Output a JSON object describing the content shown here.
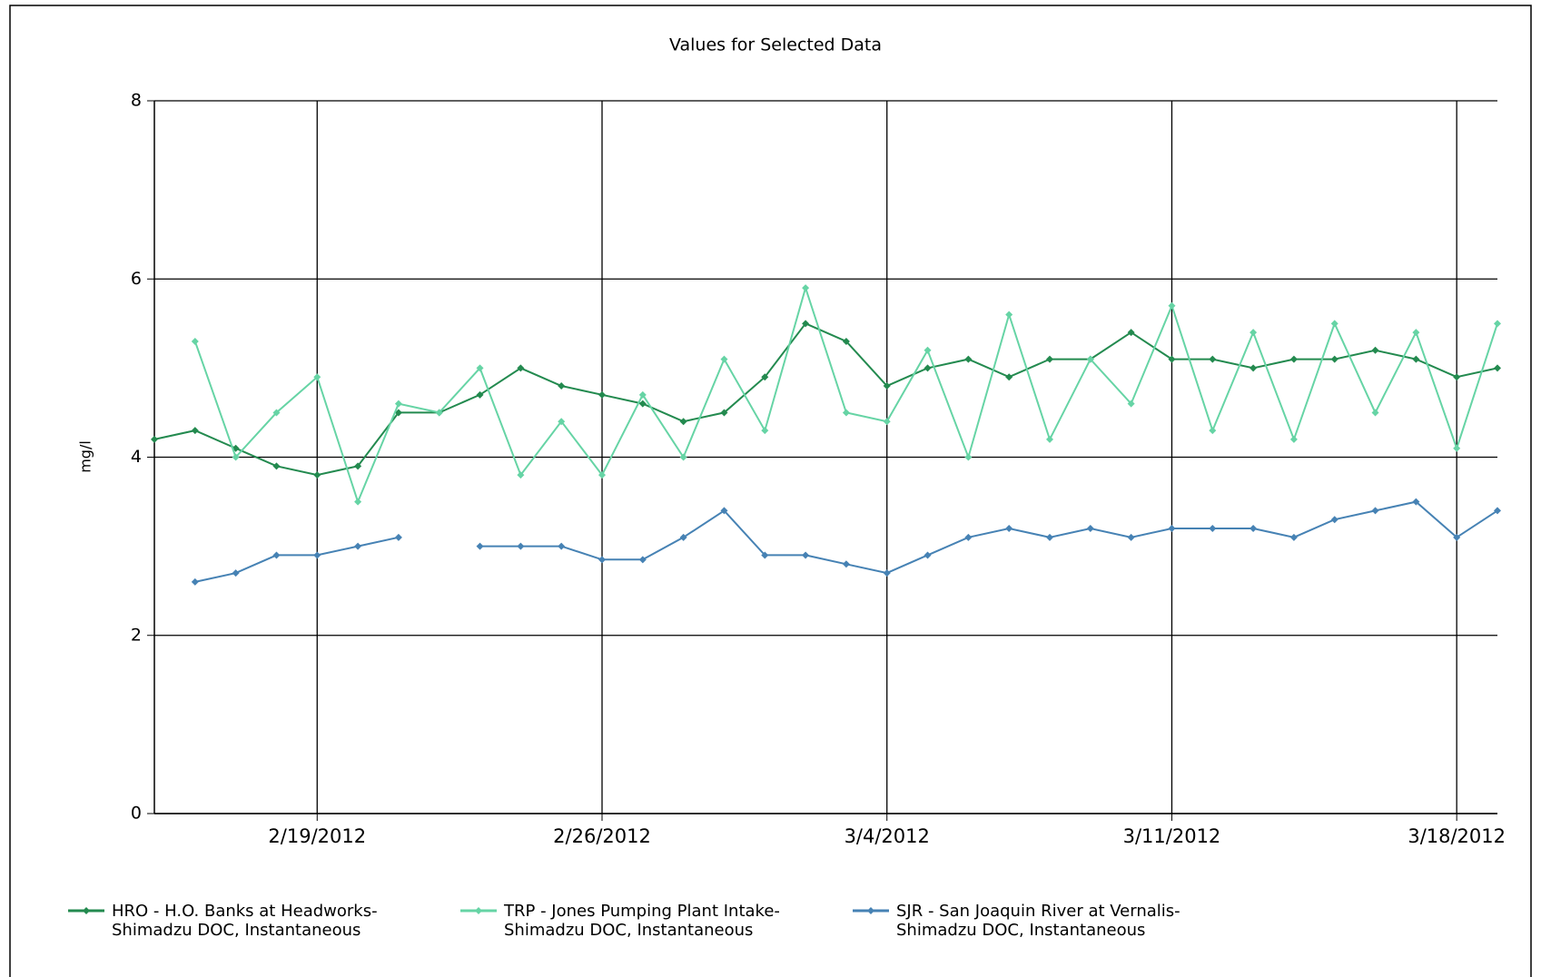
{
  "chart_data": {
    "type": "line",
    "title": "Values for Selected Data",
    "y_label": "mg/l",
    "x": [
      "2/15/2012",
      "2/16/2012",
      "2/17/2012",
      "2/18/2012",
      "2/19/2012",
      "2/20/2012",
      "2/21/2012",
      "2/22/2012",
      "2/23/2012",
      "2/24/2012",
      "2/25/2012",
      "2/26/2012",
      "2/27/2012",
      "2/28/2012",
      "2/29/2012",
      "3/1/2012",
      "3/2/2012",
      "3/3/2012",
      "3/4/2012",
      "3/5/2012",
      "3/6/2012",
      "3/7/2012",
      "3/8/2012",
      "3/9/2012",
      "3/10/2012",
      "3/11/2012",
      "3/12/2012",
      "3/13/2012",
      "3/14/2012",
      "3/15/2012",
      "3/16/2012",
      "3/17/2012",
      "3/18/2012",
      "3/19/2012"
    ],
    "series": [
      {
        "name": "HRO - H.O. Banks at Headworks-Shimadzu DOC, Instantaneous",
        "color": "#238a4f",
        "values": [
          4.2,
          4.3,
          4.1,
          3.9,
          3.8,
          3.9,
          4.5,
          4.5,
          4.7,
          5.0,
          4.8,
          4.7,
          4.6,
          4.4,
          4.5,
          4.9,
          5.5,
          5.3,
          4.8,
          5.0,
          5.1,
          4.9,
          5.1,
          5.1,
          5.4,
          5.1,
          5.1,
          5.0,
          5.1,
          5.1,
          5.2,
          5.1,
          4.9,
          5.0
        ]
      },
      {
        "name": "TRP - Jones Pumping Plant Intake-Shimadzu DOC, Instantaneous",
        "color": "#66d4a5",
        "values": [
          null,
          5.3,
          4.0,
          4.5,
          4.9,
          3.5,
          4.6,
          4.5,
          5.0,
          3.8,
          4.4,
          3.8,
          4.7,
          4.0,
          5.1,
          4.3,
          5.9,
          4.5,
          4.4,
          5.2,
          4.0,
          5.6,
          4.2,
          5.1,
          4.6,
          5.7,
          4.3,
          5.4,
          4.2,
          5.5,
          4.5,
          5.4,
          4.1,
          5.5
        ]
      },
      {
        "name": "SJR - San Joaquin River at Vernalis-Shimadzu DOC, Instantaneous",
        "color": "#4682b4",
        "values": [
          null,
          2.6,
          2.7,
          2.9,
          2.9,
          3.0,
          3.1,
          null,
          3.0,
          3.0,
          3.0,
          2.85,
          2.85,
          3.1,
          3.4,
          2.9,
          2.9,
          2.8,
          2.7,
          2.9,
          3.1,
          3.2,
          3.1,
          3.2,
          3.1,
          3.2,
          3.2,
          3.2,
          3.1,
          3.3,
          3.4,
          3.5,
          3.1,
          3.4
        ]
      }
    ],
    "xlim": [
      "2/15/2012",
      "3/19/2012"
    ],
    "xticks": [
      "2/19/2012",
      "2/26/2012",
      "3/4/2012",
      "3/11/2012",
      "3/18/2012"
    ],
    "ylim": [
      0,
      8
    ],
    "yticks": [
      0,
      2,
      4,
      6,
      8
    ],
    "grid": true
  }
}
